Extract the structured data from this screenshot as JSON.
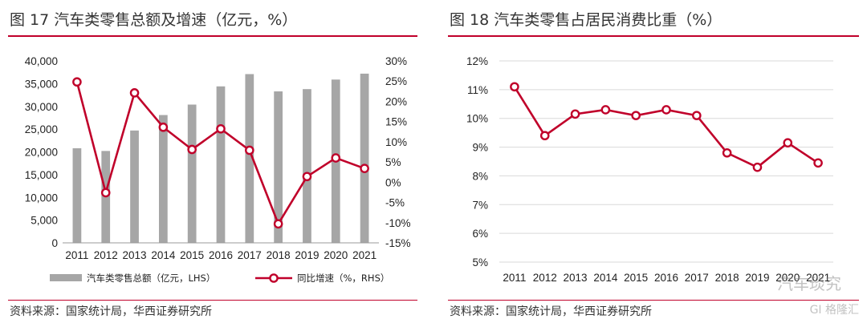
{
  "left": {
    "title": "图 17 汽车类零售总额及增速（亿元，%）",
    "source": "资料来源：国家统计局，华西证券研究所"
  },
  "right": {
    "title": "图 18 汽车类零售占居民消费比重（%）",
    "source": "资料来源：国家统计局，华西证券研究所"
  },
  "watermark": {
    "logo_text": "汽车琰究",
    "corner_text": "GI 格隆汇"
  },
  "chart_data": [
    {
      "type": "bar",
      "categories": [
        "2011",
        "2012",
        "2013",
        "2014",
        "2015",
        "2016",
        "2017",
        "2018",
        "2019",
        "2020",
        "2021"
      ],
      "series": [
        {
          "name": "汽车类零售总额（亿元，LHS）",
          "type": "bar",
          "axis": "left",
          "values": [
            20800,
            20200,
            24700,
            28100,
            30400,
            34400,
            37100,
            33300,
            33800,
            35900,
            37200
          ]
        },
        {
          "name": "同比增速（%，RHS）",
          "type": "line",
          "axis": "right",
          "values": [
            24.8,
            -2.6,
            22.1,
            13.6,
            8.1,
            13.2,
            7.9,
            -10.3,
            1.4,
            6.0,
            3.4
          ]
        }
      ],
      "y_left": {
        "ylim": [
          0,
          40000
        ],
        "ticks": [
          "0",
          "5,000",
          "10,000",
          "15,000",
          "20,000",
          "25,000",
          "30,000",
          "35,000",
          "40,000"
        ]
      },
      "y_right": {
        "ylim": [
          -15,
          30
        ],
        "ticks": [
          "-15%",
          "-10%",
          "-5%",
          "0%",
          "5%",
          "10%",
          "15%",
          "20%",
          "25%",
          "30%"
        ]
      },
      "grid": false,
      "legend": "bottom",
      "colors": {
        "bar": "#a6a6a6",
        "line": "#c0002a"
      }
    },
    {
      "type": "line",
      "categories": [
        "2011",
        "2012",
        "2013",
        "2014",
        "2015",
        "2016",
        "2017",
        "2018",
        "2019",
        "2020",
        "2021"
      ],
      "series": [
        {
          "values": [
            11.1,
            9.4,
            10.15,
            10.3,
            10.1,
            10.3,
            10.1,
            8.8,
            8.3,
            9.15,
            8.45
          ]
        }
      ],
      "y": {
        "ylim": [
          5,
          12
        ],
        "ticks": [
          "5%",
          "6%",
          "7%",
          "8%",
          "9%",
          "10%",
          "11%",
          "12%"
        ]
      },
      "grid": true,
      "legend": "none",
      "colors": {
        "line": "#c0002a",
        "grid": "#d9d9d9"
      }
    }
  ]
}
